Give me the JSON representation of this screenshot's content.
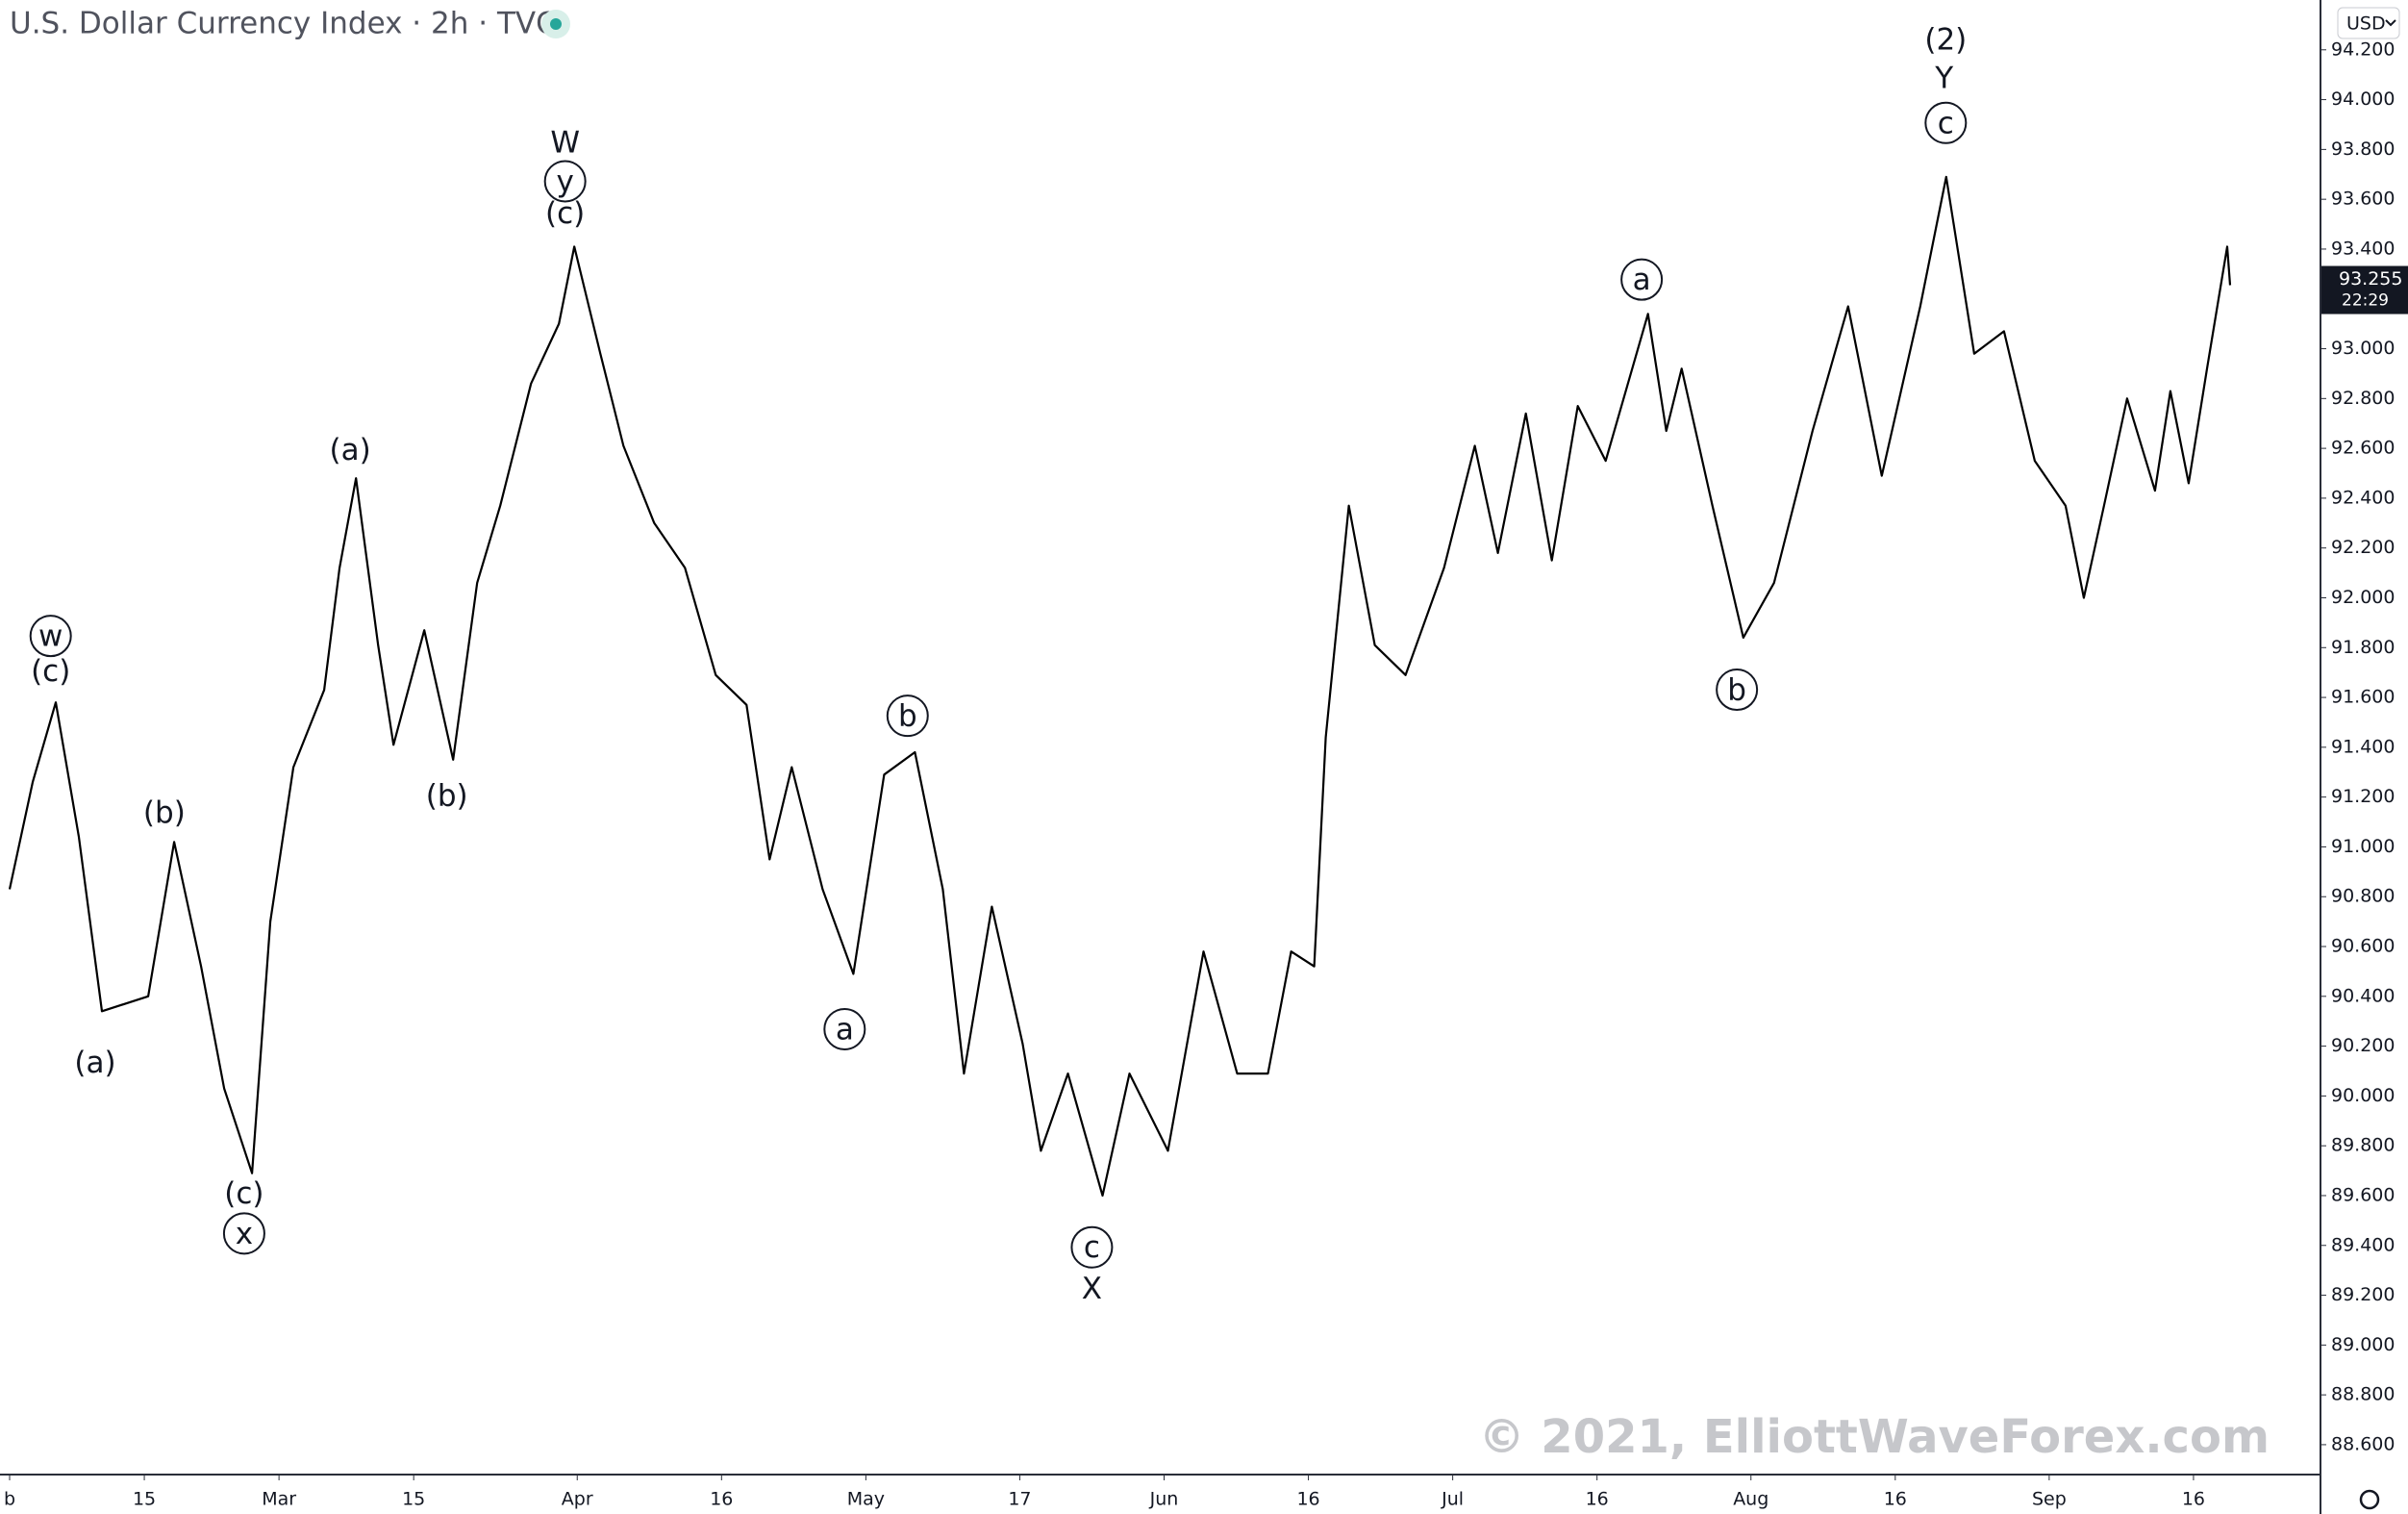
{
  "chart_data": {
    "type": "line",
    "title": "U.S. Dollar Currency Index · 2h · TVC",
    "currency": "USD",
    "last_price": 93.255,
    "countdown": "22:29",
    "watermark": "© 2021, ElliottWaveForex.com",
    "color": "#000000",
    "grid": false,
    "x": [
      32,
      34.4,
      36.8,
      39.2,
      41.6,
      46.4,
      49.1,
      51.9,
      54.3,
      57.2,
      59.1,
      61.5,
      64.7,
      66.3,
      68,
      70.3,
      71.9,
      75.1,
      78.1,
      80.6,
      83,
      86.2,
      89.1,
      90.7,
      93.4,
      95.8,
      99,
      102.2,
      105.4,
      108.6,
      111,
      113.3,
      116.5,
      119.7,
      122.9,
      126.1,
      129,
      131.2,
      134.1,
      137.3,
      139.2,
      142,
      145.6,
      148.4,
      152.4,
      156.1,
      159.6,
      162.8,
      165.2,
      167.6,
      168.8,
      171.2,
      173.9,
      177.1,
      181.1,
      184.3,
      186.7,
      189.6,
      192.3,
      195,
      197.9,
      202.3,
      204.2,
      205.8,
      209,
      212.2,
      215.4,
      219.4,
      223.1,
      226.6,
      230.6,
      233.3,
      236.2,
      239.3,
      242.5,
      245.7,
      247.6,
      249.7,
      252.1,
      255,
      256.6,
      258.5,
      260.4,
      262.5,
      262.8
    ],
    "values": [
      90.83,
      91.26,
      91.58,
      91.04,
      90.34,
      90.4,
      91.02,
      90.52,
      90.03,
      89.69,
      90.7,
      91.32,
      91.63,
      92.12,
      92.48,
      91.81,
      91.41,
      91.87,
      91.35,
      92.06,
      92.37,
      92.86,
      93.1,
      93.41,
      92.98,
      92.61,
      92.3,
      92.12,
      91.69,
      91.57,
      90.95,
      91.32,
      90.83,
      90.49,
      91.29,
      91.38,
      90.83,
      90.09,
      90.76,
      90.21,
      89.78,
      90.09,
      89.6,
      90.09,
      89.78,
      90.58,
      90.09,
      90.09,
      90.58,
      90.52,
      91.44,
      92.37,
      91.81,
      91.69,
      92.12,
      92.61,
      92.18,
      92.74,
      92.15,
      92.77,
      92.55,
      93.14,
      92.67,
      92.92,
      92.37,
      91.84,
      92.06,
      92.67,
      93.17,
      92.49,
      93.17,
      93.69,
      92.98,
      93.07,
      92.55,
      92.37,
      92,
      92.37,
      92.8,
      92.43,
      92.83,
      92.46,
      92.92,
      93.41,
      93.255
    ],
    "xlim": [
      31,
      272
    ],
    "xticks": [
      {
        "value": 32,
        "label": "b"
      },
      {
        "value": 46,
        "label": "15"
      },
      {
        "value": 60,
        "label": "Mar"
      },
      {
        "value": 74,
        "label": "15"
      },
      {
        "value": 91,
        "label": "Apr"
      },
      {
        "value": 106,
        "label": "16"
      },
      {
        "value": 121,
        "label": "May"
      },
      {
        "value": 137,
        "label": "17"
      },
      {
        "value": 152,
        "label": "Jun"
      },
      {
        "value": 167,
        "label": "16"
      },
      {
        "value": 182,
        "label": "Jul"
      },
      {
        "value": 197,
        "label": "16"
      },
      {
        "value": 213,
        "label": "Aug"
      },
      {
        "value": 228,
        "label": "16"
      },
      {
        "value": 244,
        "label": "Sep"
      },
      {
        "value": 259,
        "label": "16"
      }
    ],
    "ylim": [
      88.48,
      94.4
    ],
    "yticks": [
      {
        "value": 88.6,
        "label": "88.600"
      },
      {
        "value": 88.8,
        "label": "88.800"
      },
      {
        "value": 89,
        "label": "89.000"
      },
      {
        "value": 89.2,
        "label": "89.200"
      },
      {
        "value": 89.4,
        "label": "89.400"
      },
      {
        "value": 89.6,
        "label": "89.600"
      },
      {
        "value": 89.8,
        "label": "89.800"
      },
      {
        "value": 90,
        "label": "90.000"
      },
      {
        "value": 90.2,
        "label": "90.200"
      },
      {
        "value": 90.4,
        "label": "90.400"
      },
      {
        "value": 90.6,
        "label": "90.600"
      },
      {
        "value": 90.8,
        "label": "90.800"
      },
      {
        "value": 91,
        "label": "91.000"
      },
      {
        "value": 91.2,
        "label": "91.200"
      },
      {
        "value": 91.4,
        "label": "91.400"
      },
      {
        "value": 91.6,
        "label": "91.600"
      },
      {
        "value": 91.8,
        "label": "91.800"
      },
      {
        "value": 92,
        "label": "92.000"
      },
      {
        "value": 92.2,
        "label": "92.200"
      },
      {
        "value": 92.4,
        "label": "92.400"
      },
      {
        "value": 92.6,
        "label": "92.600"
      },
      {
        "value": 92.8,
        "label": "92.800"
      },
      {
        "value": 93,
        "label": "93.000"
      },
      {
        "value": 93.2,
        "label": "93.200"
      },
      {
        "value": 93.4,
        "label": "93.400"
      },
      {
        "value": 93.6,
        "label": "93.600"
      },
      {
        "value": 93.8,
        "label": "93.800"
      },
      {
        "value": 94,
        "label": "94.000"
      },
      {
        "value": 94.2,
        "label": "94.200"
      }
    ],
    "wave_labels": [
      {
        "text": "w",
        "circled": true
      },
      {
        "text": "(c)",
        "circled": false
      },
      {
        "text": "(a)",
        "circled": false
      },
      {
        "text": "(b)",
        "circled": false
      },
      {
        "text": "(c)",
        "circled": false
      },
      {
        "text": "x",
        "circled": true
      },
      {
        "text": "(a)",
        "circled": false
      },
      {
        "text": "(b)",
        "circled": false
      },
      {
        "text": "W",
        "circled": false
      },
      {
        "text": "y",
        "circled": true
      },
      {
        "text": "(c)",
        "circled": false
      },
      {
        "text": "a",
        "circled": true
      },
      {
        "text": "b",
        "circled": true
      },
      {
        "text": "c",
        "circled": true
      },
      {
        "text": "X",
        "circled": false
      },
      {
        "text": "a",
        "circled": true
      },
      {
        "text": "b",
        "circled": true
      },
      {
        "text": "(2)",
        "circled": false
      },
      {
        "text": "Y",
        "circled": false
      },
      {
        "text": "c",
        "circled": true
      }
    ]
  }
}
